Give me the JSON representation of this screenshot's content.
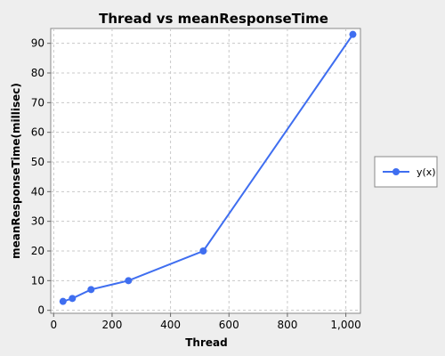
{
  "chart_data": {
    "type": "line",
    "title": "Thread vs meanResponseTime",
    "xlabel": "Thread",
    "ylabel": "meanResponseTime(millisec)",
    "xlim": [
      -10,
      1050
    ],
    "ylim": [
      -1,
      95
    ],
    "x_ticks": [
      0,
      200,
      400,
      600,
      800,
      1000
    ],
    "x_tick_labels": [
      "0",
      "200",
      "400",
      "600",
      "800",
      "1,000"
    ],
    "y_ticks": [
      0,
      10,
      20,
      30,
      40,
      50,
      60,
      70,
      80,
      90
    ],
    "y_tick_labels": [
      "0",
      "10",
      "20",
      "30",
      "40",
      "50",
      "60",
      "70",
      "80",
      "90"
    ],
    "grid": true,
    "legend_position": "right",
    "series": [
      {
        "name": "y(x)",
        "color": "#3f6ef0",
        "x": [
          32,
          64,
          128,
          256,
          512,
          1024
        ],
        "y": [
          3,
          4,
          7,
          10,
          20,
          93
        ]
      }
    ]
  }
}
